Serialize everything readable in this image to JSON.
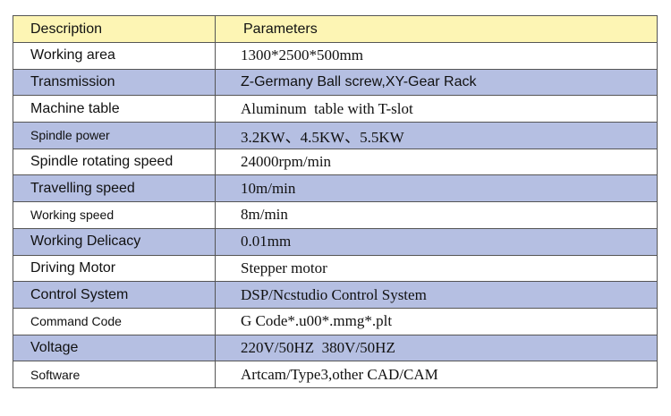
{
  "header": {
    "description": "Description",
    "parameters": "Parameters"
  },
  "table": {
    "rows": [
      [
        "Working area",
        "1300*2500*500mm"
      ],
      [
        "Transmission",
        "Z-Germany Ball screw,XY-Gear Rack"
      ],
      [
        "Machine table",
        "Aluminum  table with T-slot"
      ],
      [
        "Spindle power",
        "3.2KW、4.5KW、5.5KW"
      ],
      [
        "Spindle rotating speed",
        "24000rpm/min"
      ],
      [
        "Travelling speed",
        "10m/min"
      ],
      [
        "Working speed",
        "8m/min"
      ],
      [
        "Working Delicacy",
        "0.01mm"
      ],
      [
        "Driving Motor",
        "Stepper motor"
      ],
      [
        "Control System",
        "DSP/Ncstudio Control System"
      ],
      [
        "Command Code",
        "G Code*.u00*.mmg*.plt"
      ],
      [
        "Voltage",
        "220V/50HZ  380V/50HZ"
      ],
      [
        "Software",
        "Artcam/Type3,other CAD/CAM"
      ]
    ]
  }
}
